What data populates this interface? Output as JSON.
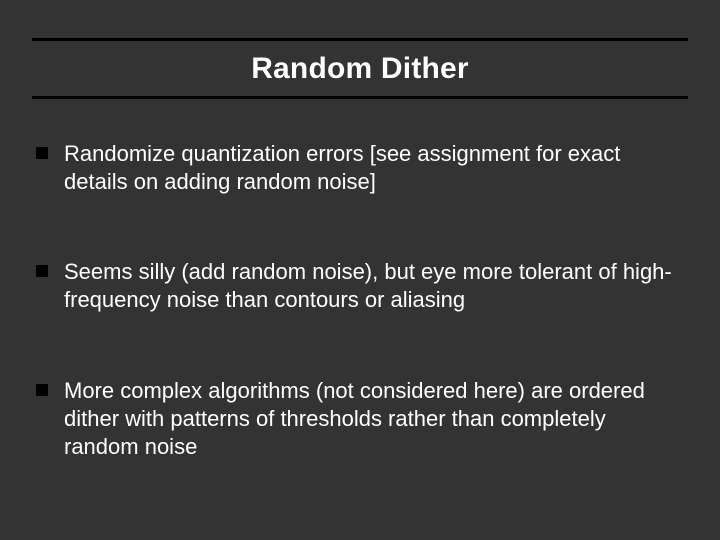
{
  "slide": {
    "title": "Random Dither",
    "background_color": "#333333",
    "rule_color": "#000000",
    "bullet_marker_color": "#000000",
    "title_style": {
      "fontsize_pt": 30,
      "font_weight": "bold",
      "color_shadow": "#000000",
      "color_face": "#ffffff",
      "font_family": "Arial"
    },
    "body_style": {
      "fontsize_pt": 22,
      "color": "#ffffff",
      "font_family": "Arial",
      "line_height": 1.28
    },
    "bullets": [
      "Randomize quantization errors [see assignment for exact details on adding random noise]",
      "Seems silly (add random noise), but eye more tolerant of high-frequency noise than contours or aliasing",
      "More complex algorithms (not considered here) are ordered dither with patterns of thresholds rather than completely random noise"
    ]
  }
}
